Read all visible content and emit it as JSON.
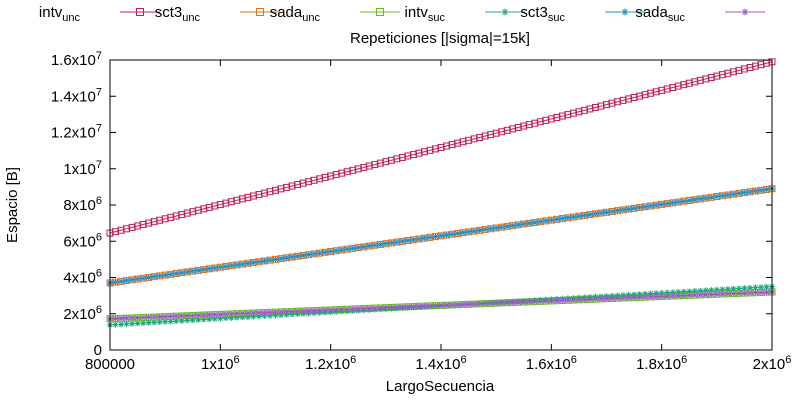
{
  "chart_data": {
    "type": "line",
    "title": "Repeticiones [|sigma|=15k]",
    "xlabel": "LargoSecuencia",
    "ylabel": "Espacio [B]",
    "xlim": [
      800000,
      2000000
    ],
    "ylim": [
      0,
      16000000
    ],
    "grid": false,
    "legend_position": "top",
    "x_ticks": [
      {
        "value": 800000,
        "mant": "800000",
        "exp": ""
      },
      {
        "value": 1000000,
        "mant": "1x10",
        "exp": "6"
      },
      {
        "value": 1200000,
        "mant": "1.2x10",
        "exp": "6"
      },
      {
        "value": 1400000,
        "mant": "1.4x10",
        "exp": "6"
      },
      {
        "value": 1600000,
        "mant": "1.6x10",
        "exp": "6"
      },
      {
        "value": 1800000,
        "mant": "1.8x10",
        "exp": "6"
      },
      {
        "value": 2000000,
        "mant": "2x10",
        "exp": "6"
      }
    ],
    "y_ticks": [
      {
        "value": 0,
        "mant": "0",
        "exp": ""
      },
      {
        "value": 2000000,
        "mant": "2x10",
        "exp": "6"
      },
      {
        "value": 4000000,
        "mant": "4x10",
        "exp": "6"
      },
      {
        "value": 6000000,
        "mant": "6x10",
        "exp": "6"
      },
      {
        "value": 8000000,
        "mant": "8x10",
        "exp": "6"
      },
      {
        "value": 10000000,
        "mant": "1x10",
        "exp": "7"
      },
      {
        "value": 12000000,
        "mant": "1.2x10",
        "exp": "7"
      },
      {
        "value": 14000000,
        "mant": "1.4x10",
        "exp": "7"
      },
      {
        "value": 16000000,
        "mant": "1.6x10",
        "exp": "7"
      }
    ],
    "x_range": {
      "start": 800000,
      "end": 2000000,
      "step": 10000
    },
    "series": [
      {
        "name": "intv",
        "sub": "unc",
        "color": "#c0204f",
        "marker": "square",
        "y_start": 6450000,
        "y_end": 15900000
      },
      {
        "name": "sct3",
        "sub": "unc",
        "color": "#e86f1a",
        "marker": "square",
        "y_start": 3700000,
        "y_end": 8900000
      },
      {
        "name": "sada",
        "sub": "unc",
        "color": "#66c21a",
        "marker": "square",
        "y_start": 1720000,
        "y_end": 3200000
      },
      {
        "name": "intv",
        "sub": "suc",
        "color": "#1fa87c",
        "marker": "asterisk",
        "y_start": 1380000,
        "y_end": 3500000
      },
      {
        "name": "sct3",
        "sub": "suc",
        "color": "#1f90c8",
        "marker": "asterisk",
        "y_start": 3700000,
        "y_end": 8900000
      },
      {
        "name": "sada",
        "sub": "suc",
        "color": "#9b59c8",
        "marker": "asterisk",
        "y_start": 1720000,
        "y_end": 3200000
      }
    ]
  }
}
